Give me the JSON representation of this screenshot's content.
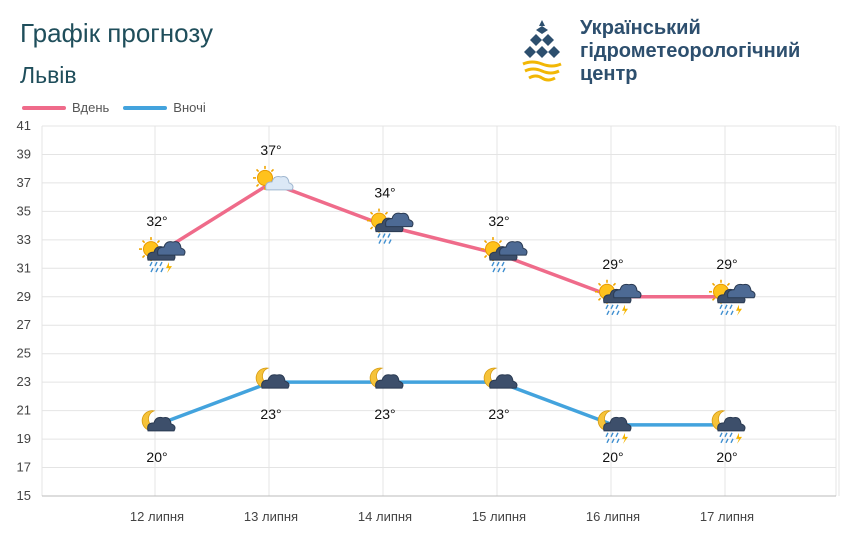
{
  "header": {
    "title": "Графік прогнозу",
    "city": "Львів",
    "org_lines": [
      "Український",
      "гідрометеорологічний",
      "центр"
    ]
  },
  "legend": [
    {
      "label": "Вдень",
      "color": "#ef6b8a"
    },
    {
      "label": "Вночі",
      "color": "#43a3dd"
    }
  ],
  "chart_data": {
    "type": "line",
    "x": [
      "12 липня",
      "13 липня",
      "14 липня",
      "15 липня",
      "16 липня",
      "17 липня"
    ],
    "ylim": [
      15,
      41
    ],
    "yticks": [
      15,
      17,
      19,
      21,
      23,
      25,
      27,
      29,
      31,
      33,
      35,
      37,
      39,
      41
    ],
    "grid": true,
    "legend_position": "top-left",
    "series": [
      {
        "name": "Вдень",
        "color": "#ef6b8a",
        "values": [
          32,
          37,
          34,
          32,
          29,
          29
        ],
        "labels": [
          "32°",
          "37°",
          "34°",
          "32°",
          "29°",
          "29°"
        ],
        "icons": [
          "sun-cloud-rain-thunder-icon",
          "sun-cloud-icon",
          "sun-cloud-rain-icon",
          "sun-cloud-rain-icon",
          "sun-cloud-rain-thunder-icon",
          "sun-cloud-rain-thunder-icon"
        ]
      },
      {
        "name": "Вночі",
        "color": "#43a3dd",
        "values": [
          20,
          23,
          23,
          23,
          20,
          20
        ],
        "labels": [
          "20°",
          "23°",
          "23°",
          "23°",
          "20°",
          "20°"
        ],
        "icons": [
          "moon-cloud-icon",
          "moon-cloud-icon",
          "moon-cloud-icon",
          "moon-cloud-icon",
          "moon-cloud-rain-thunder-icon",
          "moon-cloud-rain-thunder-icon"
        ]
      }
    ]
  }
}
